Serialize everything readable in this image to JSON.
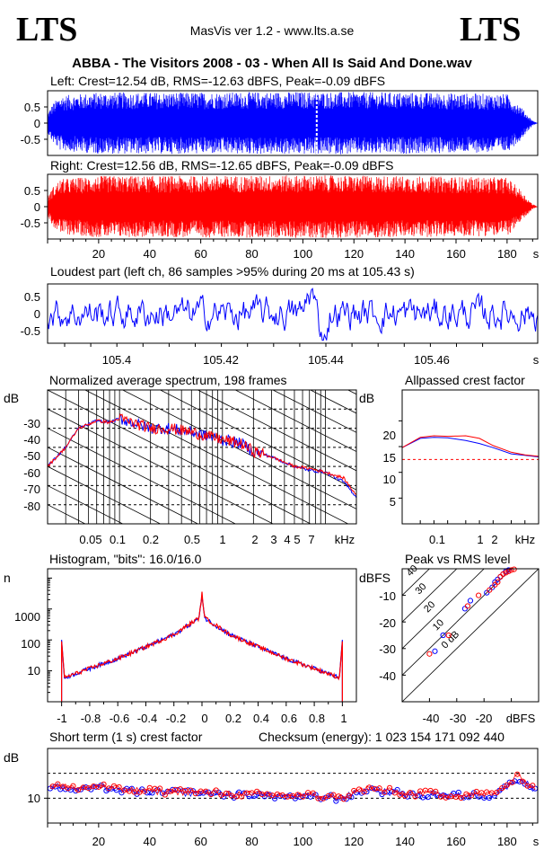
{
  "header": {
    "logo_left": "LTS",
    "logo_right": "LTS",
    "app_title": "MasVis ver 1.2 - www.lts.a.se",
    "file_title": "ABBA - The Visitors  2008 - 03 - When All Is Said And Done.wav"
  },
  "colors": {
    "left": "#0000ff",
    "right": "#ff0000",
    "marker": "#ffffff",
    "grid": "#000000"
  },
  "waveform_left": {
    "title": "Left: Crest=12.54 dB, RMS=-12.63 dBFS, Peak=-0.09 dBFS",
    "yticks": [
      "0.5",
      "0",
      "-0.5"
    ],
    "marker_s": 105.43
  },
  "waveform_right": {
    "title": "Right: Crest=12.56 dB, RMS=-12.65 dBFS, Peak=-0.09 dBFS",
    "yticks": [
      "0.5",
      "0",
      "-0.5"
    ]
  },
  "time_axis": {
    "ticks": [
      "20",
      "40",
      "60",
      "80",
      "100",
      "120",
      "140",
      "160",
      "180"
    ],
    "unit": "s",
    "duration_s": 192
  },
  "loudest": {
    "title": "Loudest part (left  ch, 86 samples >95% during 20 ms at 105.43 s)",
    "yticks": [
      "0.5",
      "0",
      "-0.5"
    ],
    "xticks": [
      "105.4",
      "105.42",
      "105.44",
      "105.46"
    ],
    "unit": "s"
  },
  "spectrum": {
    "title": "Normalized average spectrum, 198 frames",
    "ylabel": "dB",
    "yticks": [
      "-30",
      "-40",
      "-50",
      "-60",
      "-70",
      "-80"
    ],
    "xticks": [
      "0.05",
      "0.1",
      "0.2",
      "0.5",
      "1",
      "2",
      "3",
      "4",
      "5",
      "7"
    ],
    "xunit": "kHz"
  },
  "allpassed": {
    "title": "Allpassed crest factor",
    "ylabel": "dB",
    "yticks": [
      "20",
      "15",
      "10",
      "5"
    ],
    "xticks": [
      "0.1",
      "1",
      "2"
    ],
    "xunit": "kHz"
  },
  "histogram": {
    "title": "Histogram, \"bits\": 16.0/16.0",
    "ylabel": "n",
    "yticks": [
      "1000",
      "100",
      "10"
    ],
    "xticks": [
      "-1",
      "-0.8",
      "-0.6",
      "-0.4",
      "-0.2",
      "0",
      "0.2",
      "0.4",
      "0.6",
      "0.8",
      "1"
    ]
  },
  "peak_rms": {
    "title": "Peak vs RMS level",
    "ylabel": "dBFS",
    "yticks": [
      "-10",
      "-20",
      "-30",
      "-40"
    ],
    "xticks": [
      "-40",
      "-30",
      "-20"
    ],
    "xunit": "dBFS",
    "diag_labels": [
      "40",
      "30",
      "20",
      "10",
      "0 dB"
    ]
  },
  "short_term": {
    "title": "Short term (1 s) crest factor",
    "checksum": "Checksum (energy):  1 023 154 171 092 440",
    "ylabel": "dB",
    "yticks": [
      "10"
    ],
    "xticks": [
      "20",
      "40",
      "60",
      "80",
      "100",
      "120",
      "140",
      "160",
      "180"
    ],
    "unit": "s"
  },
  "chart_data": [
    {
      "type": "area",
      "title": "Left: Crest=12.54 dB, RMS=-12.63 dBFS, Peak=-0.09 dBFS",
      "xlabel": "s",
      "ylim": [
        -1,
        1
      ],
      "xlim": [
        0,
        192
      ],
      "envelope": {
        "x": [
          0,
          2,
          5,
          20,
          60,
          100,
          140,
          180,
          185,
          188,
          190,
          192
        ],
        "y": [
          0.3,
          0.6,
          0.85,
          0.95,
          0.95,
          0.97,
          0.95,
          0.9,
          0.55,
          0.25,
          0.08,
          0
        ]
      },
      "marker_x": 105.43
    },
    {
      "type": "area",
      "title": "Right: Crest=12.56 dB, RMS=-12.65 dBFS, Peak=-0.09 dBFS",
      "xlabel": "s",
      "ylim": [
        -1,
        1
      ],
      "xlim": [
        0,
        192
      ],
      "envelope": {
        "x": [
          0,
          2,
          5,
          20,
          60,
          100,
          140,
          180,
          185,
          188,
          190,
          192
        ],
        "y": [
          0.3,
          0.6,
          0.85,
          0.95,
          0.95,
          0.97,
          0.95,
          0.9,
          0.55,
          0.25,
          0.08,
          0
        ]
      }
    },
    {
      "type": "line",
      "title": "Loudest part (left  ch, 86 samples >95% during 20 ms at 105.43 s)",
      "xlabel": "s",
      "xlim": [
        105.385,
        105.478
      ],
      "ylim": [
        -1,
        1
      ]
    },
    {
      "type": "line",
      "title": "Normalized average spectrum, 198 frames",
      "xlabel": "kHz",
      "ylabel": "dB",
      "xscale": "log",
      "xlim": [
        0.02,
        20
      ],
      "ylim": [
        -90,
        -20
      ],
      "series": [
        {
          "x": [
            0.02,
            0.03,
            0.04,
            0.05,
            0.06,
            0.08,
            0.1,
            0.15,
            0.2,
            0.3,
            0.5,
            0.7,
            1,
            1.5,
            2,
            3,
            5,
            7,
            10,
            15,
            20
          ],
          "y": [
            -60,
            -50,
            -40,
            -38,
            -36,
            -37,
            -35,
            -38,
            -40,
            -40,
            -42,
            -44,
            -46,
            -48,
            -52,
            -55,
            -60,
            -62,
            -63,
            -68,
            -76
          ]
        },
        {
          "x": [
            0.02,
            0.03,
            0.04,
            0.05,
            0.06,
            0.08,
            0.1,
            0.15,
            0.2,
            0.3,
            0.5,
            0.7,
            1,
            1.5,
            2,
            3,
            5,
            7,
            10,
            15,
            20
          ],
          "y": [
            -60,
            -50,
            -40,
            -38,
            -36,
            -37,
            -35,
            -38,
            -40,
            -40,
            -42,
            -44,
            -46,
            -48,
            -52,
            -55,
            -60,
            -61,
            -63,
            -66,
            -75
          ]
        }
      ]
    },
    {
      "type": "line",
      "title": "Allpassed crest factor",
      "xlabel": "kHz",
      "ylabel": "dB",
      "xscale": "log",
      "xlim": [
        0.02,
        20
      ],
      "ylim": [
        0,
        26
      ],
      "reference_y": 12.5,
      "series": [
        {
          "x": [
            0.02,
            0.05,
            0.1,
            0.2,
            0.5,
            1,
            2,
            5,
            10,
            20
          ],
          "y": [
            14.8,
            16.6,
            16.8,
            16.7,
            16.2,
            15.6,
            14.8,
            13.6,
            13.3,
            13.0
          ]
        },
        {
          "x": [
            0.02,
            0.05,
            0.1,
            0.2,
            0.5,
            1,
            2,
            5,
            10,
            20
          ],
          "y": [
            14.8,
            16.8,
            17.1,
            17.0,
            17.1,
            16.6,
            15.2,
            13.9,
            13.4,
            13.1
          ]
        }
      ]
    },
    {
      "type": "line",
      "title": "Histogram, \"bits\": 16.0/16.0",
      "ylabel": "n",
      "yscale": "log",
      "xlim": [
        -1.1,
        1.1
      ],
      "ylim": [
        1,
        20000
      ],
      "series": [
        {
          "x": [
            -1,
            -0.98,
            -0.8,
            -0.6,
            -0.4,
            -0.2,
            -0.02,
            0,
            0.02,
            0.2,
            0.4,
            0.6,
            0.8,
            0.98,
            1
          ],
          "y": [
            100,
            6,
            12,
            25,
            60,
            150,
            500,
            3000,
            500,
            150,
            60,
            25,
            12,
            6,
            100
          ]
        },
        {
          "x": [
            -1,
            -0.98,
            -0.8,
            -0.6,
            -0.4,
            -0.2,
            -0.02,
            0,
            0.02,
            0.2,
            0.4,
            0.6,
            0.8,
            0.98,
            1
          ],
          "y": [
            90,
            6,
            12,
            25,
            60,
            150,
            520,
            3200,
            520,
            150,
            60,
            25,
            12,
            6,
            90
          ]
        }
      ]
    },
    {
      "type": "scatter",
      "title": "Peak vs RMS level",
      "xlabel": "dBFS",
      "ylabel": "dBFS",
      "xlim": [
        -50,
        0
      ],
      "ylim": [
        -50,
        0
      ],
      "diagonals_db": [
        40,
        30,
        20,
        10,
        0
      ],
      "series": [
        {
          "x": [
            -38,
            -35,
            -27,
            -25,
            -19,
            -17,
            -16,
            -15,
            -14,
            -13,
            -12,
            -11
          ],
          "y": [
            -31,
            -25,
            -15,
            -12,
            -9,
            -7,
            -5,
            -4,
            -3,
            -2,
            -1,
            -0.5
          ]
        },
        {
          "x": [
            -40,
            -33,
            -26,
            -22,
            -18,
            -16,
            -15,
            -14,
            -13,
            -12,
            -11,
            -10,
            -9
          ],
          "y": [
            -32,
            -25,
            -14,
            -10,
            -8,
            -6,
            -5,
            -3,
            -2,
            -1.5,
            -1,
            -0.5,
            -0.2
          ]
        }
      ]
    },
    {
      "type": "scatter",
      "title": "Short term (1 s) crest factor",
      "xlabel": "s",
      "ylabel": "dB",
      "xlim": [
        0,
        192
      ],
      "ylim": [
        5,
        20
      ],
      "reference_lines": [
        10,
        15
      ],
      "series": [
        {
          "x": [
            2,
            10,
            20,
            30,
            40,
            60,
            80,
            100,
            115,
            125,
            140,
            160,
            175,
            185,
            190
          ],
          "y": [
            12.5,
            11.8,
            12.2,
            11.5,
            11.2,
            11.0,
            10.6,
            10.4,
            10.0,
            11.8,
            10.8,
            10.5,
            10.6,
            14.0,
            12.0
          ]
        },
        {
          "x": [
            2,
            10,
            20,
            30,
            40,
            60,
            80,
            100,
            115,
            125,
            140,
            160,
            175,
            185,
            190
          ],
          "y": [
            12.7,
            12.0,
            12.4,
            11.7,
            11.4,
            11.2,
            10.8,
            10.6,
            10.2,
            12.0,
            11.0,
            10.7,
            10.8,
            14.5,
            12.2
          ]
        }
      ]
    }
  ]
}
